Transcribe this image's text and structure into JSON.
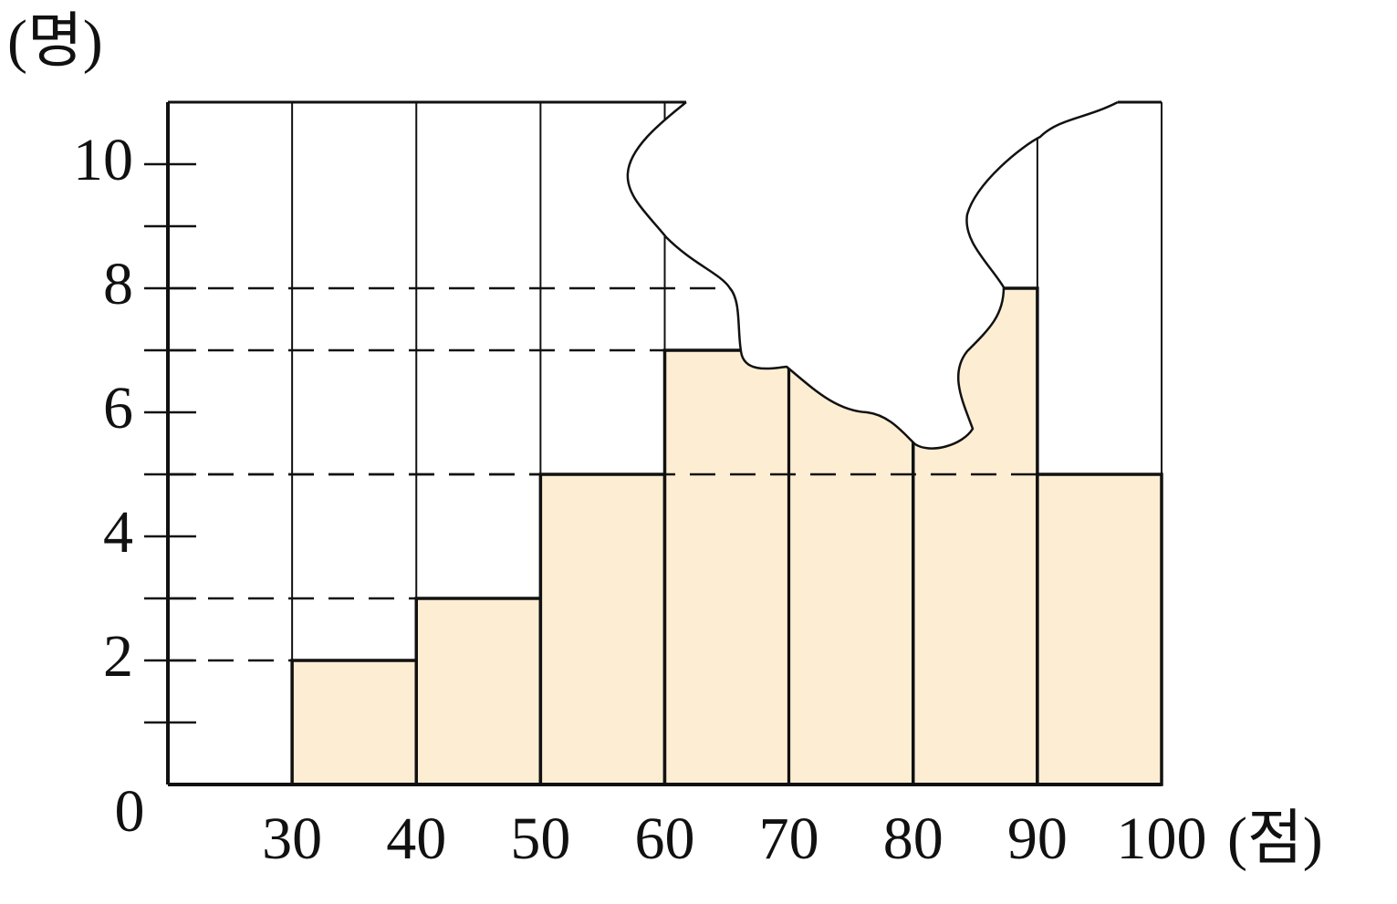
{
  "chart_data": {
    "type": "histogram",
    "x_label": "(점)",
    "y_label": "(명)",
    "bins": [
      30,
      40,
      50,
      60,
      70,
      80,
      90,
      100
    ],
    "values": [
      2,
      3,
      5,
      7,
      null,
      8,
      5
    ],
    "color": "#fdeed3",
    "xlim": [
      20,
      100
    ],
    "ylim": [
      0,
      11
    ],
    "yticks": [
      0,
      2,
      4,
      6,
      8,
      10
    ],
    "yminor_ticks": [
      1,
      3,
      5,
      7,
      9
    ],
    "grid": true,
    "dashed_guides": true
  }
}
